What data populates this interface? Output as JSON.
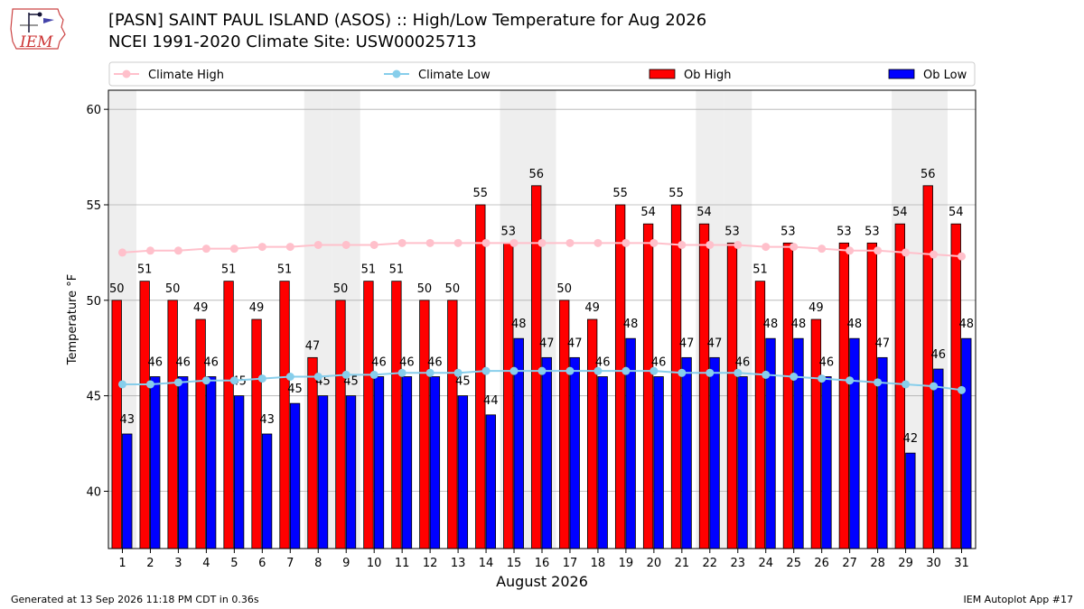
{
  "header": {
    "logo_text": "IEM",
    "title": "[PASN] SAINT PAUL ISLAND (ASOS) :: High/Low Temperature for Aug 2026",
    "subtitle": "NCEI 1991-2020 Climate Site: USW00025713"
  },
  "footer": {
    "generated": "Generated at 13 Sep 2026 11:18 PM CDT in 0.36s",
    "app": "IEM Autoplot App #17"
  },
  "colors": {
    "ob_high": "#ff0000",
    "ob_low": "#0000ff",
    "climate_high": "#ffc0cb",
    "climate_low": "#87ceeb",
    "weekend_band": "#eeeeee"
  },
  "chart_data": {
    "type": "bar",
    "xlabel": "August 2026",
    "ylabel": "Temperature °F",
    "ylim": [
      37,
      61
    ],
    "yticks": [
      40,
      45,
      50,
      55,
      60
    ],
    "grid": true,
    "legend_position": "top",
    "categories": [
      "1",
      "2",
      "3",
      "4",
      "5",
      "6",
      "7",
      "8",
      "9",
      "10",
      "11",
      "12",
      "13",
      "14",
      "15",
      "16",
      "17",
      "18",
      "19",
      "20",
      "21",
      "22",
      "23",
      "24",
      "25",
      "26",
      "27",
      "28",
      "29",
      "30",
      "31"
    ],
    "shaded_days": [
      1,
      8,
      9,
      15,
      16,
      22,
      23,
      29,
      30
    ],
    "series": [
      {
        "name": "Ob High",
        "kind": "bar",
        "values": [
          50,
          51,
          50,
          49,
          51,
          49,
          51,
          47,
          50,
          51,
          51,
          50,
          50,
          55,
          53,
          56,
          50,
          49,
          55,
          54,
          55,
          54,
          53,
          51,
          53,
          49,
          53,
          53,
          54,
          56,
          54
        ]
      },
      {
        "name": "Ob Low",
        "kind": "bar",
        "values": [
          43,
          46,
          46,
          46,
          45,
          43,
          45,
          45,
          45,
          46,
          46,
          46,
          45,
          44,
          48,
          47,
          47,
          46,
          48,
          46,
          47,
          47,
          46,
          48,
          48,
          46,
          48,
          47,
          42,
          46,
          48
        ],
        "values_plotted": [
          43,
          46,
          46,
          46,
          45,
          43,
          44.6,
          45,
          45,
          46,
          46,
          46,
          45,
          44,
          48,
          47,
          47,
          46,
          48,
          46,
          47,
          47,
          46,
          48,
          48,
          46,
          48,
          47,
          42,
          46.4,
          48
        ]
      },
      {
        "name": "Climate High",
        "kind": "line",
        "values": [
          52.5,
          52.6,
          52.6,
          52.7,
          52.7,
          52.8,
          52.8,
          52.9,
          52.9,
          52.9,
          53,
          53,
          53,
          53,
          53,
          53,
          53,
          53,
          53,
          53,
          52.9,
          52.9,
          52.9,
          52.8,
          52.8,
          52.7,
          52.6,
          52.6,
          52.5,
          52.4,
          52.3
        ]
      },
      {
        "name": "Climate Low",
        "kind": "line",
        "values": [
          45.6,
          45.6,
          45.7,
          45.8,
          45.8,
          45.9,
          46,
          46,
          46.1,
          46.1,
          46.2,
          46.2,
          46.2,
          46.3,
          46.3,
          46.3,
          46.3,
          46.3,
          46.3,
          46.3,
          46.2,
          46.2,
          46.2,
          46.1,
          46,
          45.9,
          45.8,
          45.7,
          45.6,
          45.5,
          45.3
        ]
      }
    ]
  }
}
